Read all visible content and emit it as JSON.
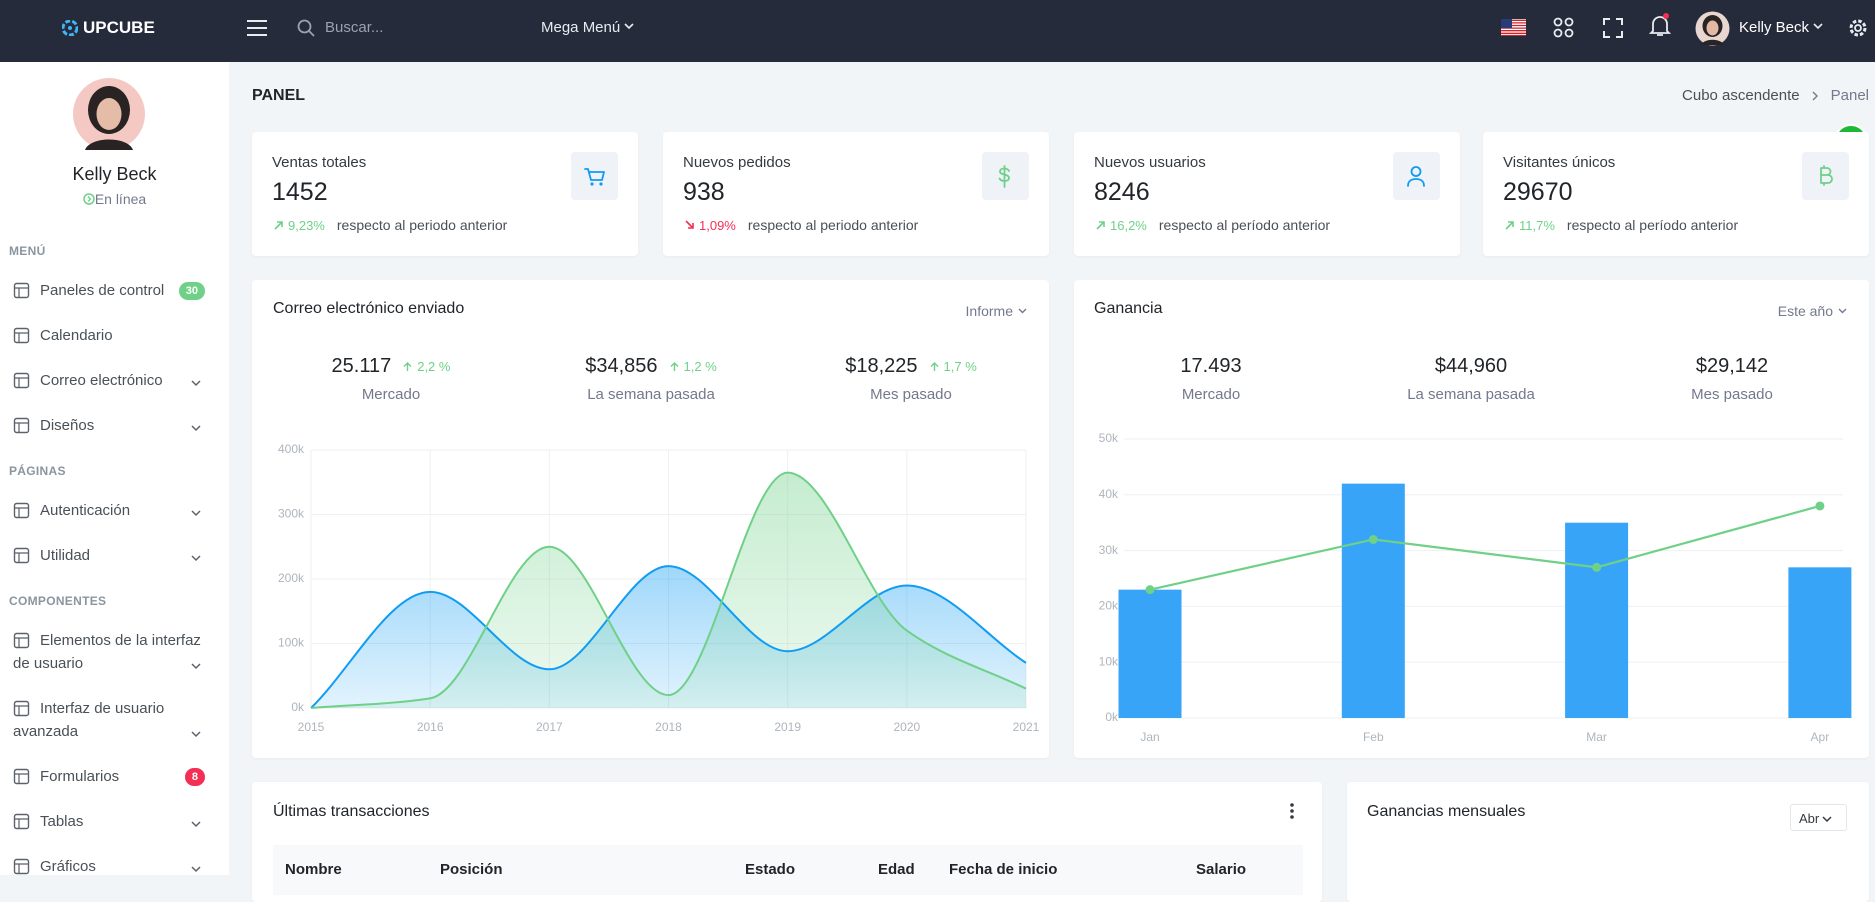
{
  "header": {
    "logo": "UPCUBE",
    "search_placeholder": "Buscar...",
    "mega_menu": "Mega Menú",
    "user": "Kelly Beck"
  },
  "sidebar": {
    "user": "Kelly Beck",
    "status": "En línea",
    "sections": [
      {
        "title": "MENÚ",
        "items": [
          {
            "label": "Paneles de control",
            "badge": 30,
            "badge_color": "#6fd088"
          },
          {
            "label": "Calendario"
          },
          {
            "label": "Correo electrónico",
            "expandable": true
          },
          {
            "label": "Diseños",
            "expandable": true
          }
        ]
      },
      {
        "title": "PÁGINAS",
        "items": [
          {
            "label": "Autenticación",
            "expandable": true
          },
          {
            "label": "Utilidad",
            "expandable": true
          }
        ]
      },
      {
        "title": "COMPONENTES",
        "items": [
          {
            "label": "Elementos de la interfaz de usuario",
            "expandable": true
          },
          {
            "label": "Interfaz de usuario avanzada",
            "expandable": true
          },
          {
            "label": "Formularios",
            "badge": 8,
            "badge_color": "#f32f53"
          },
          {
            "label": "Tablas",
            "expandable": true
          },
          {
            "label": "Gráficos",
            "expandable": true
          }
        ]
      }
    ]
  },
  "page": {
    "title": "PANEL",
    "breadcrumb": [
      "Cubo ascendente",
      "Panel"
    ]
  },
  "stats": [
    {
      "title": "Ventas totales",
      "value": 1452,
      "change": "9,23%",
      "trend": "up",
      "note": "respecto al periodo anterior"
    },
    {
      "title": "Nuevos pedidos",
      "value": 938,
      "change": "1,09%",
      "trend": "down",
      "note": "respecto al periodo anterior"
    },
    {
      "title": "Nuevos usuarios",
      "value": 8246,
      "change": "16,2%",
      "trend": "up",
      "note": "respecto al período anterior"
    },
    {
      "title": "Visitantes únicos",
      "value": 29670,
      "change": "11,7%",
      "trend": "up",
      "note": "respecto al período anterior"
    }
  ],
  "email_chart": {
    "type": "area",
    "title": "Correo electrónico enviado",
    "menu": "Informe",
    "summary": [
      {
        "value": "25.117",
        "change": "2,2 %",
        "label": "Mercado"
      },
      {
        "value": "$34,856",
        "change": "1,2 %",
        "label": "La semana pasada"
      },
      {
        "value": "$18,225",
        "change": "1,7 %",
        "label": "Mes pasado"
      }
    ],
    "x": [
      2015,
      2016,
      2017,
      2018,
      2019,
      2020,
      2021
    ],
    "xlim": [
      2015,
      2021
    ],
    "xticks": [
      2015,
      2016,
      2017,
      2018,
      2019,
      2020,
      2021
    ],
    "ylim": [
      0,
      400000
    ],
    "yticks": [
      {
        "value": 0,
        "label": "0k"
      },
      {
        "value": 100000,
        "label": "100k"
      },
      {
        "value": 200000,
        "label": "200k"
      },
      {
        "value": 300000,
        "label": "300k"
      },
      {
        "value": 400000,
        "label": "400k"
      }
    ],
    "grid": true,
    "series": [
      {
        "color": "#0f9cf3",
        "values": [
          0,
          180000,
          60000,
          220000,
          88000,
          190000,
          70000
        ]
      },
      {
        "color": "#6fd088",
        "values": [
          0,
          15000,
          250000,
          20000,
          365000,
          120000,
          30000
        ]
      }
    ]
  },
  "profit_chart": {
    "type": "bar",
    "title": "Ganancia",
    "menu": "Este año",
    "summary": [
      {
        "value": "17.493",
        "label": "Mercado"
      },
      {
        "value": "$44,960",
        "label": "La semana pasada"
      },
      {
        "value": "$29,142",
        "label": "Mes pasado"
      }
    ],
    "categories": [
      "Jan",
      "Feb",
      "Mar",
      "Apr"
    ],
    "ylim": [
      0,
      50000
    ],
    "yticks": [
      {
        "value": 0,
        "label": "0k"
      },
      {
        "value": 10000,
        "label": "10k"
      },
      {
        "value": 20000,
        "label": "20k"
      },
      {
        "value": 30000,
        "label": "30k"
      },
      {
        "value": 40000,
        "label": "40k"
      },
      {
        "value": 50000,
        "label": "50k"
      }
    ],
    "grid": true,
    "series": [
      {
        "type": "bar",
        "color": "#38a4f8",
        "values": [
          23000,
          42000,
          35000,
          27000
        ]
      },
      {
        "type": "line",
        "color": "#6fd088",
        "values": [
          23000,
          32000,
          27000,
          38000
        ]
      }
    ]
  },
  "transactions": {
    "title": "Últimas transacciones",
    "columns": [
      "Nombre",
      "Posición",
      "Estado",
      "Edad",
      "Fecha de inicio",
      "Salario"
    ]
  },
  "monthly": {
    "title": "Ganancias mensuales",
    "menu": "Abr"
  }
}
